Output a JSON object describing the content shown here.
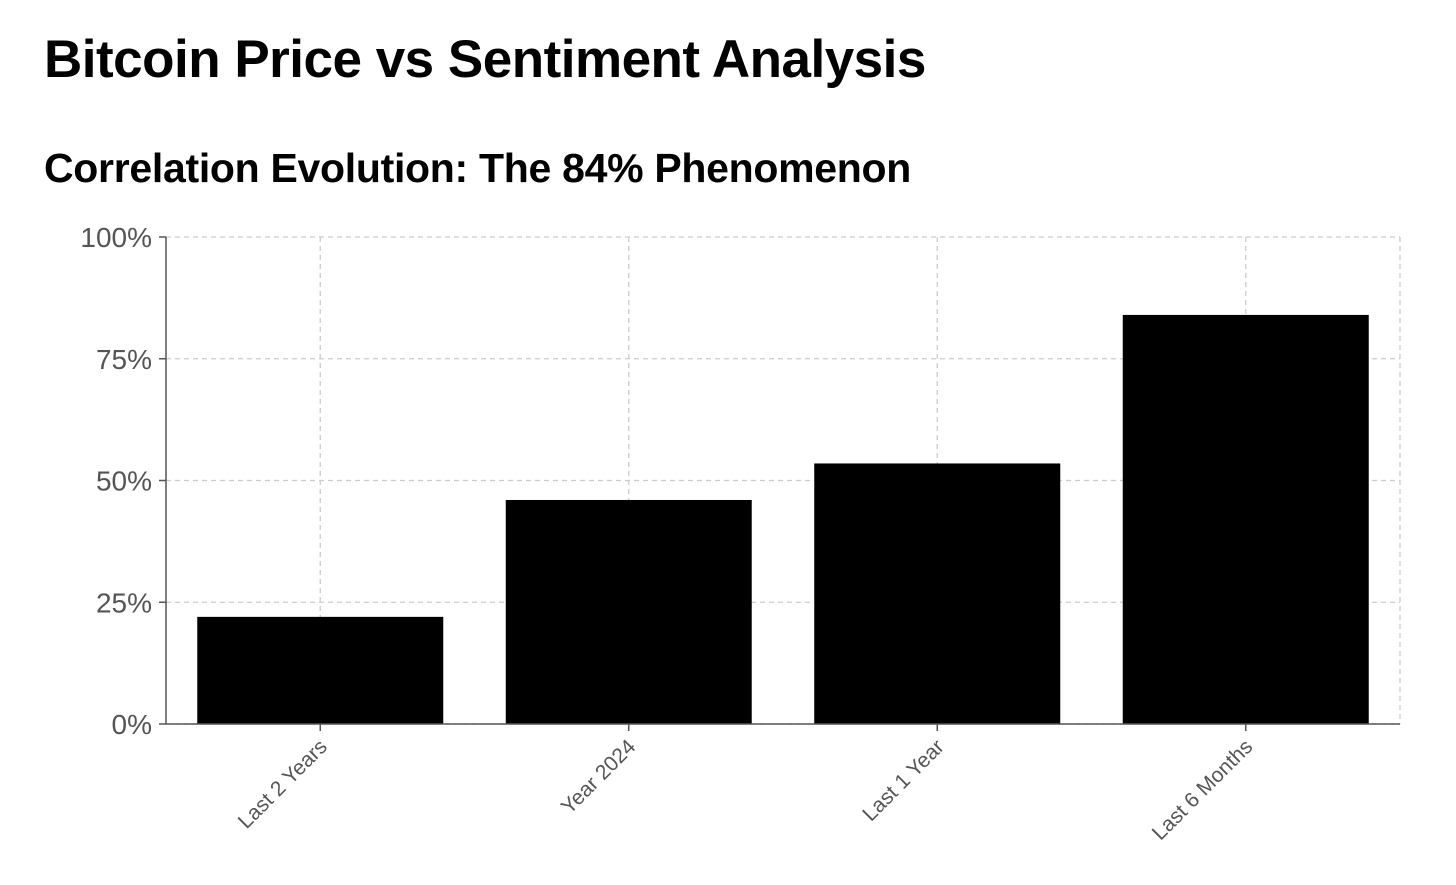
{
  "page": {
    "title": "Bitcoin Price vs Sentiment Analysis"
  },
  "chart_data": {
    "type": "bar",
    "title": "Correlation Evolution: The 84% Phenomenon",
    "categories": [
      "Last 2 Years",
      "Year 2024",
      "Last 1 Year",
      "Last 6 Months"
    ],
    "values": [
      22,
      46,
      53.5,
      84
    ],
    "ylim": [
      0,
      100
    ],
    "yticks": [
      0,
      25,
      50,
      75,
      100
    ],
    "ytick_labels": [
      "0%",
      "25%",
      "50%",
      "75%",
      "100%"
    ],
    "xlabel": "",
    "ylabel": "",
    "grid": true,
    "legend": "none",
    "bar_color": "#000000",
    "grid_color": "#cccccc",
    "axis_color": "#555555"
  }
}
